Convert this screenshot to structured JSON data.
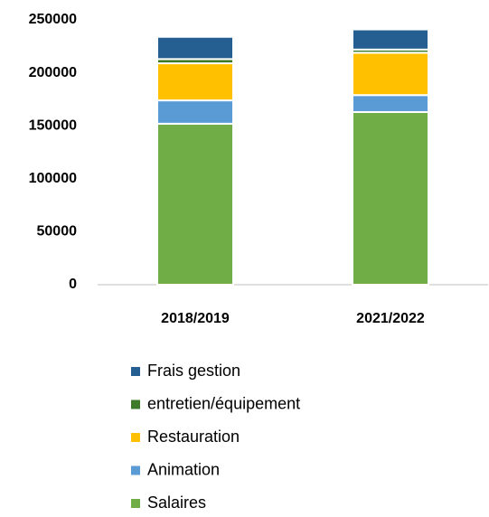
{
  "chart_data": {
    "type": "stacked_bar",
    "categories": [
      "2018/2019",
      "2021/2022"
    ],
    "series": [
      {
        "name": "Salaires",
        "color": "#70ad47",
        "values": [
          152000,
          163000
        ]
      },
      {
        "name": "Animation",
        "color": "#5b9bd5",
        "values": [
          22000,
          16000
        ]
      },
      {
        "name": "Restauration",
        "color": "#ffc000",
        "values": [
          35000,
          40000
        ]
      },
      {
        "name": "entretien/équipement",
        "color": "#3d7a2a",
        "values": [
          4000,
          3000
        ]
      },
      {
        "name": "Frais gestion",
        "color": "#255e91",
        "values": [
          21000,
          19000
        ]
      }
    ],
    "ylim": [
      0,
      250000
    ],
    "yticks": [
      0,
      50000,
      100000,
      150000,
      200000,
      250000
    ],
    "legend": "bottom"
  }
}
